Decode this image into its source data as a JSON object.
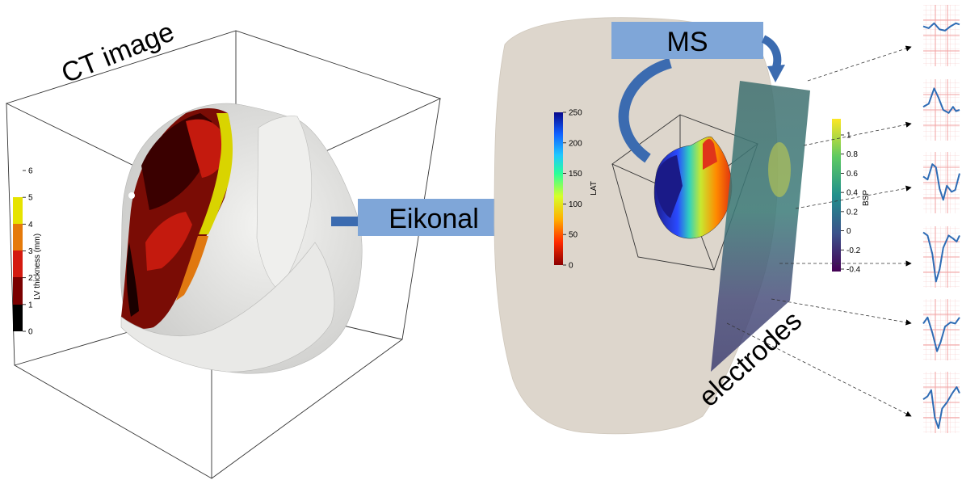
{
  "labels": {
    "ct_image": "CT image",
    "eikonal": "Eikonal",
    "ms": "MS",
    "electrodes": "electrodes"
  },
  "lv_thickness_bar": {
    "title": "LV thickness (mm)",
    "ticks": [
      "0",
      "1",
      "2",
      "3",
      "4",
      "5",
      "6"
    ]
  },
  "lat_bar": {
    "title": "LAT",
    "ticks": [
      "0",
      "50",
      "100",
      "150",
      "200",
      "250"
    ]
  },
  "bsp_bar": {
    "title": "BSP",
    "ticks": [
      "-0.4",
      "-0.2",
      "0",
      "0.2",
      "0.4",
      "0.6",
      "0.8",
      "1"
    ]
  },
  "colors": {
    "process_box": "#7fa6d8",
    "arrow": "#3b6bb0",
    "heart_surface": "#e6e6e3",
    "torso": "#ded8cf",
    "ecg_grid": "#f2a0a0",
    "ecg_trace": "#2e6cb5"
  },
  "ecg_traces": [
    {
      "name": "lead-1"
    },
    {
      "name": "lead-2"
    },
    {
      "name": "lead-3"
    },
    {
      "name": "lead-4"
    },
    {
      "name": "lead-5"
    },
    {
      "name": "lead-6"
    }
  ]
}
